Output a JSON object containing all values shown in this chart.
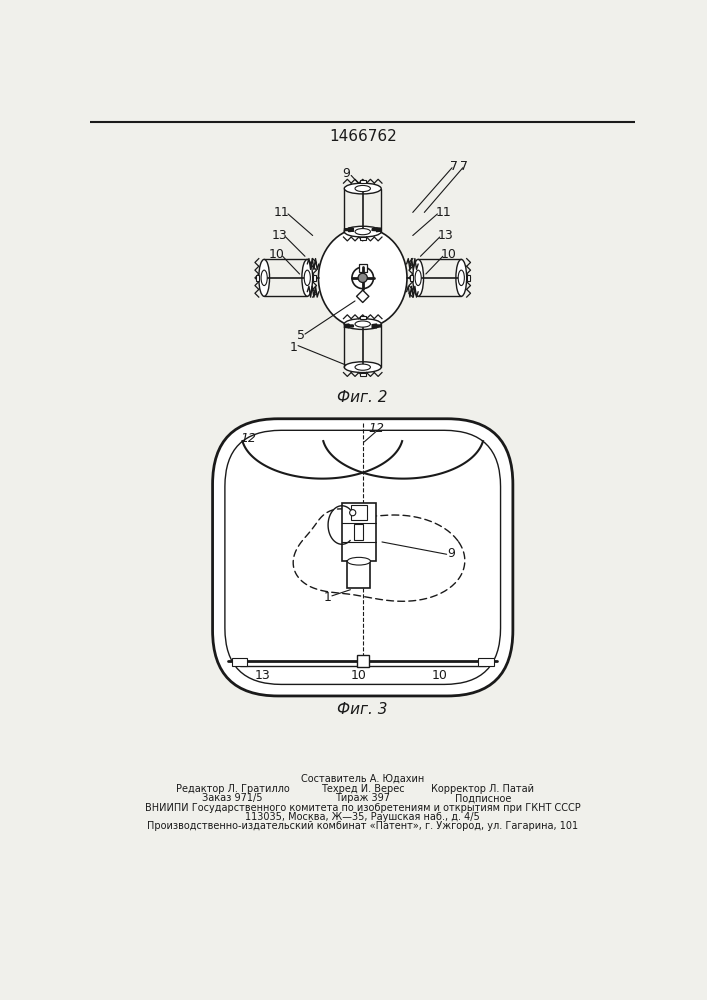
{
  "title_number": "1466762",
  "fig2_label": "Фиг. 2",
  "fig3_label": "Фиг. 3",
  "background_color": "#f0f0eb",
  "line_color": "#1a1a1a",
  "footer_line0": "Составитель А. Юдахин",
  "footer_line1_left": "Редактор Л. Гратилло",
  "footer_line1_mid": "Техред И. Верес",
  "footer_line1_right": "Корректор Л. Патай",
  "footer_line2_left": "Заказ 971/5",
  "footer_line2_mid": "Тираж 397",
  "footer_line2_right": "Подписное",
  "footer_line3": "ВНИИПИ Государственного комитета по изобретениям и открытиям при ГКНТ СССР",
  "footer_line4": "113035, Москва, Ж—35, Раушская наб., д. 4/5",
  "footer_line5": "Производственно-издательский комбинат «Патент», г. Ужгород, ул. Гагарина, 101"
}
